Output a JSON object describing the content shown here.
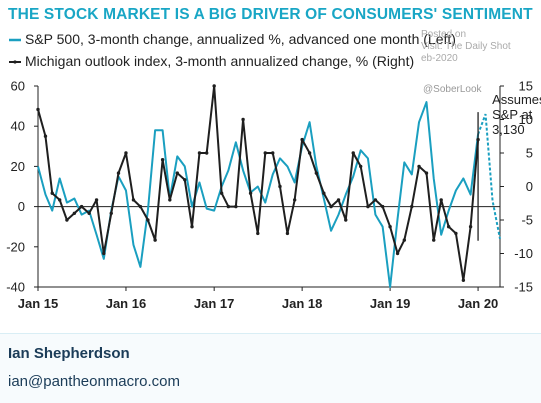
{
  "chart_data": {
    "type": "line",
    "title": "THE STOCK MARKET IS A BIG DRIVER OF CONSUMERS' SENTIMENT",
    "x_labels": [
      "Jan 15",
      "Jan 16",
      "Jan 17",
      "Jan 18",
      "Jan 19",
      "Jan 20"
    ],
    "x_range": [
      "2015-01",
      "2020-04"
    ],
    "ylim_left": [
      -40,
      60
    ],
    "yticks_left": [
      -40,
      -20,
      0,
      20,
      40,
      60
    ],
    "ylim_right": [
      -15,
      15
    ],
    "yticks_right": [
      -15,
      -10,
      -5,
      0,
      5,
      10,
      15
    ],
    "zero_line": true,
    "series": [
      {
        "name": "S&P 500, 3-month change, annualized %, advanced one month (Left)",
        "axis": "left",
        "color": "#1a9fc0",
        "x": [
          "2015-01",
          "2015-02",
          "2015-03",
          "2015-04",
          "2015-05",
          "2015-06",
          "2015-07",
          "2015-08",
          "2015-09",
          "2015-10",
          "2015-11",
          "2015-12",
          "2016-01",
          "2016-02",
          "2016-03",
          "2016-04",
          "2016-05",
          "2016-06",
          "2016-07",
          "2016-08",
          "2016-09",
          "2016-10",
          "2016-11",
          "2016-12",
          "2017-01",
          "2017-02",
          "2017-03",
          "2017-04",
          "2017-05",
          "2017-06",
          "2017-07",
          "2017-08",
          "2017-09",
          "2017-10",
          "2017-11",
          "2017-12",
          "2018-01",
          "2018-02",
          "2018-03",
          "2018-04",
          "2018-05",
          "2018-06",
          "2018-07",
          "2018-08",
          "2018-09",
          "2018-10",
          "2018-11",
          "2018-12",
          "2019-01",
          "2019-02",
          "2019-03",
          "2019-04",
          "2019-05",
          "2019-06",
          "2019-07",
          "2019-08",
          "2019-09",
          "2019-10",
          "2019-11",
          "2019-12",
          "2020-01",
          "2020-02",
          "2020-03",
          "2020-04"
        ],
        "values": [
          20,
          6,
          -2,
          14,
          2,
          4,
          -4,
          -2,
          -14,
          -26,
          -2,
          15,
          8,
          -19,
          -30,
          -2,
          38,
          38,
          4,
          25,
          20,
          0,
          12,
          -1,
          -2,
          10,
          18,
          32,
          18,
          7,
          10,
          2,
          16,
          24,
          20,
          12,
          30,
          42,
          20,
          4,
          -12,
          -4,
          6,
          15,
          28,
          24,
          -4,
          -10,
          -40,
          -6,
          22,
          16,
          42,
          52,
          14,
          -14,
          -2,
          8,
          14,
          6,
          36,
          46,
          3,
          -16
        ],
        "last_segment_dashed": true,
        "dashed_segment_x": [
          "2020-01",
          "2020-04"
        ],
        "dashed_annotation": "Assumes S&P at 3,130"
      },
      {
        "name": "Michigan outlook index, 3-month annualized change, % (Right)",
        "axis": "right",
        "color": "#1f1f1f",
        "x": [
          "2015-01",
          "2015-02",
          "2015-03",
          "2015-04",
          "2015-05",
          "2015-06",
          "2015-07",
          "2015-08",
          "2015-09",
          "2015-10",
          "2015-11",
          "2015-12",
          "2016-01",
          "2016-02",
          "2016-03",
          "2016-04",
          "2016-05",
          "2016-06",
          "2016-07",
          "2016-08",
          "2016-09",
          "2016-10",
          "2016-11",
          "2016-12",
          "2017-01",
          "2017-02",
          "2017-03",
          "2017-04",
          "2017-05",
          "2017-06",
          "2017-07",
          "2017-08",
          "2017-09",
          "2017-10",
          "2017-11",
          "2017-12",
          "2018-01",
          "2018-02",
          "2018-03",
          "2018-04",
          "2018-05",
          "2018-06",
          "2018-07",
          "2018-08",
          "2018-09",
          "2018-10",
          "2018-11",
          "2018-12",
          "2019-01",
          "2019-02",
          "2019-03",
          "2019-04",
          "2019-05",
          "2019-06",
          "2019-07",
          "2019-08",
          "2019-09",
          "2019-10",
          "2019-11",
          "2019-12",
          "2020-01"
        ],
        "values": [
          11.5,
          7.5,
          -1,
          -2,
          -5,
          -4,
          -3,
          -4,
          -2,
          -10,
          -4,
          2,
          5,
          -2,
          -3,
          -5,
          -8,
          4,
          -2,
          2,
          1,
          -6,
          5,
          5,
          15,
          -1,
          -3,
          -3,
          10,
          -1,
          -7,
          5,
          5,
          0,
          -7,
          -2,
          7,
          5,
          2,
          -1,
          -3,
          -2,
          -5,
          5,
          3,
          -3,
          -2,
          -3,
          -6,
          -10,
          -8,
          -3,
          3,
          2,
          -8,
          -2,
          -6,
          -7,
          -14,
          -6,
          7
        ]
      }
    ],
    "annotations": [
      {
        "text_lines": [
          "Assumes",
          "S&P at",
          "3,130"
        ],
        "x": "2020-01",
        "y_left": 32
      }
    ]
  },
  "legend": {
    "items": [
      {
        "label": "S&P 500, 3-month change, annualized %, advanced one month (Left)",
        "color": "#1a9fc0"
      },
      {
        "label": "Michigan outlook index, 3-month annualized change, % (Right)",
        "color": "#1f1f1f"
      }
    ]
  },
  "watermark": {
    "lines": [
      "Posted on",
      "Visit: The Daily Shot",
      "eb-2020"
    ],
    "handle": "@SoberLook"
  },
  "footer": {
    "author": "Ian Shepherdson",
    "email": "ian@pantheonmacro.com"
  }
}
